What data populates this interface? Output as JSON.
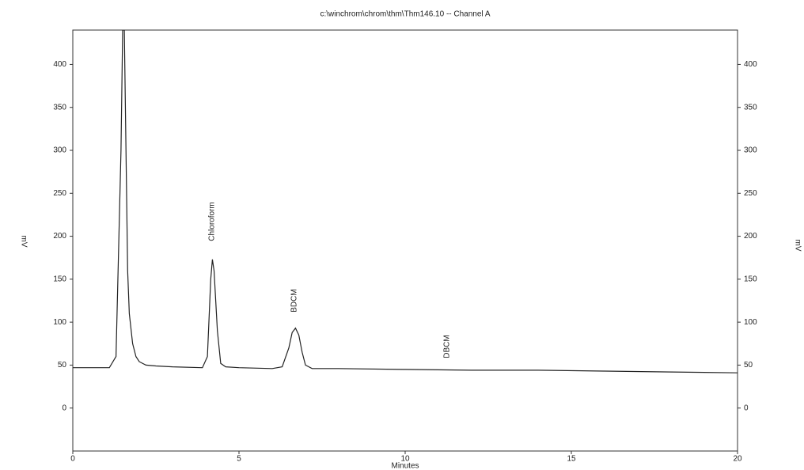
{
  "chart_data": {
    "type": "line",
    "title": "c:\\winchrom\\chrom\\thm\\Thm146.10 -- Channel A",
    "x_label": "Minutes",
    "y_label": "mV",
    "xlim": [
      0,
      20
    ],
    "xticks": [
      0,
      5,
      10,
      15,
      20
    ],
    "ylim": [
      -50,
      440
    ],
    "yticks": [
      0,
      50,
      100,
      150,
      200,
      250,
      300,
      350,
      400
    ],
    "x": [
      0,
      1.1,
      1.3,
      1.45,
      1.5,
      1.55,
      1.6,
      1.65,
      1.7,
      1.8,
      1.9,
      2.0,
      2.2,
      2.5,
      3.0,
      3.9,
      4.05,
      4.15,
      4.2,
      4.25,
      4.35,
      4.45,
      4.6,
      5,
      6,
      6.3,
      6.5,
      6.6,
      6.7,
      6.8,
      6.9,
      7.0,
      7.2,
      8,
      10,
      12,
      14,
      16,
      18,
      20
    ],
    "series": [
      {
        "color": "#222222",
        "values": [
          47,
          47,
          60,
          300,
          440,
          440,
          300,
          160,
          110,
          75,
          60,
          54,
          50,
          49,
          48,
          47,
          60,
          150,
          173,
          160,
          90,
          52,
          48,
          47,
          46,
          48,
          70,
          88,
          93,
          85,
          65,
          50,
          46,
          46,
          45,
          44,
          44,
          43,
          42,
          41
        ]
      }
    ],
    "annotations": [
      "Chloroform",
      "BDCM",
      "DBCM"
    ]
  }
}
